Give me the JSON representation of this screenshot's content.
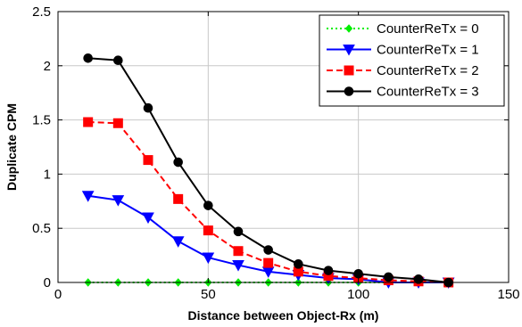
{
  "chart_data": {
    "type": "line",
    "title": "",
    "xlabel": "Distance between Object-Rx (m)",
    "ylabel": "Duplicate CPM",
    "xlim": [
      0,
      150
    ],
    "ylim": [
      0,
      2.5
    ],
    "xticks": [
      0,
      50,
      100,
      150
    ],
    "yticks": [
      0,
      0.5,
      1,
      1.5,
      2,
      2.5
    ],
    "xtick_labels": [
      "0",
      "50",
      "100",
      "150"
    ],
    "ytick_labels": [
      "0",
      "0.5",
      "1",
      "1.5",
      "2",
      "2.5"
    ],
    "grid": true,
    "legend_position": "top-right",
    "x": [
      10,
      20,
      30,
      40,
      50,
      60,
      70,
      80,
      90,
      100,
      110,
      120,
      130
    ],
    "series": [
      {
        "name": "CounterReTx = 0",
        "color": "#00ee00",
        "dash": "dotted",
        "marker": "diamond",
        "values": [
          0,
          0,
          0,
          0,
          0,
          0,
          0,
          0,
          0,
          0,
          0,
          0,
          0
        ]
      },
      {
        "name": "CounterReTx = 1",
        "color": "#0000ff",
        "dash": "solid",
        "marker": "triangle-down",
        "values": [
          0.8,
          0.76,
          0.6,
          0.38,
          0.23,
          0.16,
          0.1,
          0.07,
          0.04,
          0.03,
          0.0,
          0.0,
          0.0
        ]
      },
      {
        "name": "CounterReTx = 2",
        "color": "#ff0000",
        "dash": "dashed",
        "marker": "square",
        "values": [
          1.48,
          1.47,
          1.13,
          0.77,
          0.48,
          0.29,
          0.18,
          0.1,
          0.06,
          0.04,
          0.02,
          0.01,
          0.0
        ]
      },
      {
        "name": "CounterReTx = 3",
        "color": "#000000",
        "dash": "solid",
        "marker": "circle",
        "values": [
          2.07,
          2.05,
          1.61,
          1.11,
          0.71,
          0.47,
          0.3,
          0.17,
          0.11,
          0.08,
          0.05,
          0.03,
          0.0
        ]
      }
    ]
  }
}
